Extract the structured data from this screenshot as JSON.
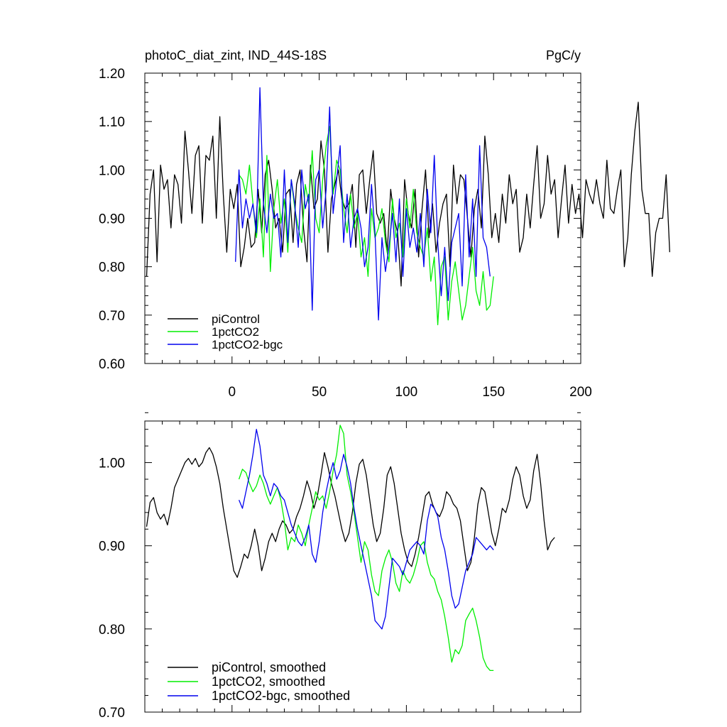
{
  "colors": {
    "piControl": "#000000",
    "1pctCO2": "#00ee00",
    "1pctCO2-bgc": "#0000ee"
  },
  "chart_data": [
    {
      "type": "line",
      "title": "photoC_diat_zint, IND_44S-18S",
      "units": "PgC/y",
      "xlim": [
        -50,
        200
      ],
      "ylim": [
        0.6,
        1.2
      ],
      "xticks": [
        "0",
        "50",
        "100",
        "150",
        "200"
      ],
      "yticks": [
        "0.60",
        "0.70",
        "0.80",
        "0.90",
        "1.00",
        "1.10",
        "1.20"
      ],
      "legend_position": "bottom-left",
      "series": [
        {
          "name": "piControl",
          "x_start": -49,
          "x_step": 2,
          "values": [
            0.78,
            0.95,
            1.0,
            0.81,
            1.01,
            0.96,
            0.98,
            0.88,
            0.99,
            0.97,
            0.89,
            1.08,
            1.0,
            0.91,
            1.03,
            1.05,
            0.89,
            1.03,
            1.02,
            1.07,
            0.9,
            1.11,
            0.95,
            0.83,
            0.96,
            0.92,
            0.97,
            0.8,
            0.84,
            0.9,
            0.84,
            0.85,
            0.96,
            0.87,
            0.99,
            1.02,
            0.96,
            0.88,
            0.9,
            0.83,
            0.95,
            0.96,
            0.85,
            0.97,
            1.0,
            0.88,
            0.81,
            1.01,
            0.92,
            0.94,
            1.06,
            1.0,
            0.83,
            0.94,
            0.97,
            1.0,
            0.94,
            0.92,
            0.93,
            0.97,
            0.84,
            0.99,
            1.0,
            0.91,
            0.98,
            1.04,
            0.91,
            0.89,
            0.91,
            0.83,
            0.96,
            0.9,
            0.87,
            0.76,
            0.98,
            0.91,
            0.88,
            0.96,
            0.82,
            0.92,
            1.0,
            0.86,
            0.93,
            0.83,
            0.89,
            0.93,
            0.95,
            0.8,
            1.01,
            0.93,
            0.99,
            0.98,
            0.9,
            0.82,
            0.92,
            0.96,
            0.88,
            1.07,
            0.99,
            0.86,
            0.91,
            0.85,
            0.95,
            0.89,
            0.99,
            0.93,
            0.96,
            0.83,
            0.86,
            0.95,
            0.88,
            0.97,
            1.05,
            0.9,
            0.93,
            1.03,
            0.95,
            0.98,
            0.86,
            0.94,
            1.01,
            0.89,
            0.97,
            0.91,
            0.95,
            0.86,
            0.98,
            0.95,
            0.93,
            0.98,
            0.93,
            0.9,
            1.02,
            0.92,
            0.91,
            0.96,
            1.0,
            0.8,
            0.86,
            0.99,
            1.08,
            1.14,
            0.96,
            0.91,
            0.91,
            0.78,
            0.87,
            0.9,
            0.9,
            0.99,
            0.83
          ]
        },
        {
          "name": "1pctCO2",
          "x_start": 4,
          "x_step": 2,
          "values": [
            0.99,
            0.98,
            0.95,
            1.01,
            0.93,
            0.86,
            0.94,
            0.82,
            1.03,
            0.79,
            0.92,
            0.98,
            0.89,
            0.94,
            0.83,
            0.98,
            0.92,
            0.88,
            0.85,
            0.97,
            0.93,
            1.04,
            0.9,
            0.87,
            0.98,
            1.05,
            1.09,
            0.95,
            1.02,
            1.0,
            0.92,
            0.87,
            0.95,
            0.88,
            0.91,
            0.82,
            0.86,
            0.78,
            0.92,
            0.86,
            0.88,
            0.92,
            0.85,
            0.81,
            0.94,
            0.86,
            0.89,
            0.82,
            0.94,
            0.88,
            0.96,
            0.87,
            0.84,
            0.82,
            0.88,
            0.77,
            0.82,
            0.68,
            0.8,
            0.82,
            0.69,
            0.77,
            0.81,
            0.75,
            0.69,
            0.72,
            0.78,
            0.84,
            0.75,
            0.72,
            0.79,
            0.71,
            0.72,
            0.78
          ]
        },
        {
          "name": "1pctCO2-bgc",
          "x_start": 2,
          "x_step": 2,
          "values": [
            0.81,
            1.0,
            0.88,
            0.94,
            0.9,
            0.93,
            0.87,
            1.17,
            0.93,
            0.87,
            0.95,
            0.9,
            0.91,
            0.82,
            1.0,
            0.85,
            0.98,
            0.93,
            0.84,
            1.0,
            0.92,
            0.95,
            0.71,
            0.98,
            1.0,
            0.88,
            0.96,
            1.13,
            0.91,
            0.98,
            1.05,
            0.85,
            0.95,
            0.84,
            0.9,
            0.92,
            0.88,
            0.8,
            0.84,
            0.97,
            0.87,
            0.69,
            0.86,
            0.79,
            0.84,
            0.91,
            0.81,
            0.94,
            0.78,
            0.92,
            0.84,
            0.88,
            0.83,
            0.91,
            0.8,
            0.96,
            0.87,
            1.03,
            0.85,
            0.74,
            0.84,
            0.73,
            0.85,
            0.88,
            0.91,
            0.76,
            0.99,
            0.82,
            0.94,
            0.78,
            1.05,
            0.86,
            0.84,
            0.78
          ]
        }
      ]
    },
    {
      "type": "line",
      "xlim": [
        -50,
        200
      ],
      "ylim": [
        0.7,
        1.05
      ],
      "yticks": [
        "0.70",
        "0.80",
        "0.90",
        "1.00"
      ],
      "legend_position": "bottom-left",
      "series": [
        {
          "name": "piControl, smoothed",
          "x_start": -49,
          "x_step": 2,
          "values": [
            0.923,
            0.952,
            0.958,
            0.94,
            0.932,
            0.938,
            0.925,
            0.945,
            0.97,
            0.98,
            0.99,
            1.0,
            1.005,
            0.998,
            1.005,
            0.995,
            1.0,
            1.012,
            1.018,
            1.01,
            0.995,
            0.975,
            0.945,
            0.92,
            0.895,
            0.87,
            0.862,
            0.875,
            0.89,
            0.885,
            0.9,
            0.92,
            0.9,
            0.87,
            0.885,
            0.905,
            0.915,
            0.905,
            0.92,
            0.93,
            0.925,
            0.915,
            0.92,
            0.935,
            0.945,
            0.96,
            0.978,
            0.965,
            0.945,
            0.96,
            0.985,
            1.012,
            0.995,
            0.975,
            0.96,
            0.94,
            0.92,
            0.905,
            0.915,
            0.94,
            0.975,
            0.998,
            1.004,
            0.985,
            0.955,
            0.925,
            0.905,
            0.915,
            0.945,
            0.985,
            0.995,
            0.975,
            0.945,
            0.915,
            0.895,
            0.88,
            0.875,
            0.89,
            0.91,
            0.935,
            0.96,
            0.965,
            0.95,
            0.94,
            0.935,
            0.945,
            0.965,
            0.96,
            0.95,
            0.945,
            0.93,
            0.9,
            0.87,
            0.88,
            0.91,
            0.95,
            0.97,
            0.965,
            0.94,
            0.915,
            0.9,
            0.92,
            0.945,
            0.94,
            0.955,
            0.98,
            0.995,
            0.985,
            0.96,
            0.945,
            0.955,
            0.99,
            1.01,
            0.975,
            0.93,
            0.895,
            0.905,
            0.91
          ]
        },
        {
          "name": "1pctCO2, smoothed",
          "x_start": 4,
          "x_step": 2,
          "values": [
            0.98,
            0.992,
            0.988,
            0.975,
            0.965,
            0.972,
            0.985,
            0.975,
            0.96,
            0.95,
            0.96,
            0.97,
            0.955,
            0.93,
            0.895,
            0.91,
            0.905,
            0.925,
            0.915,
            0.9,
            0.925,
            0.945,
            0.965,
            0.955,
            0.96,
            0.945,
            0.965,
            0.99,
            1.01,
            1.045,
            1.035,
            0.985,
            0.965,
            0.94,
            0.91,
            0.88,
            0.905,
            0.895,
            0.865,
            0.845,
            0.84,
            0.87,
            0.885,
            0.895,
            0.88,
            0.855,
            0.845,
            0.87,
            0.86,
            0.855,
            0.865,
            0.88,
            0.9,
            0.905,
            0.88,
            0.865,
            0.86,
            0.845,
            0.835,
            0.815,
            0.79,
            0.76,
            0.775,
            0.77,
            0.78,
            0.81,
            0.818,
            0.825,
            0.81,
            0.79,
            0.765,
            0.755,
            0.75,
            0.75
          ]
        },
        {
          "name": "1pctCO2-bgc, smoothed",
          "x_start": 4,
          "x_step": 2,
          "values": [
            0.955,
            0.945,
            0.965,
            0.985,
            1.01,
            1.04,
            1.02,
            0.985,
            0.975,
            0.96,
            0.975,
            0.97,
            0.96,
            0.955,
            0.94,
            0.925,
            0.915,
            0.905,
            0.9,
            0.91,
            0.925,
            0.89,
            0.88,
            0.905,
            0.94,
            0.965,
            0.985,
            1.0,
            0.98,
            0.99,
            1.01,
            0.995,
            0.975,
            0.945,
            0.92,
            0.9,
            0.88,
            0.86,
            0.84,
            0.81,
            0.805,
            0.8,
            0.815,
            0.85,
            0.885,
            0.88,
            0.875,
            0.865,
            0.88,
            0.895,
            0.9,
            0.905,
            0.9,
            0.89,
            0.93,
            0.95,
            0.945,
            0.935,
            0.91,
            0.895,
            0.87,
            0.84,
            0.825,
            0.83,
            0.85,
            0.87,
            0.88,
            0.89,
            0.91,
            0.905,
            0.9,
            0.895,
            0.9,
            0.895
          ]
        }
      ]
    }
  ]
}
